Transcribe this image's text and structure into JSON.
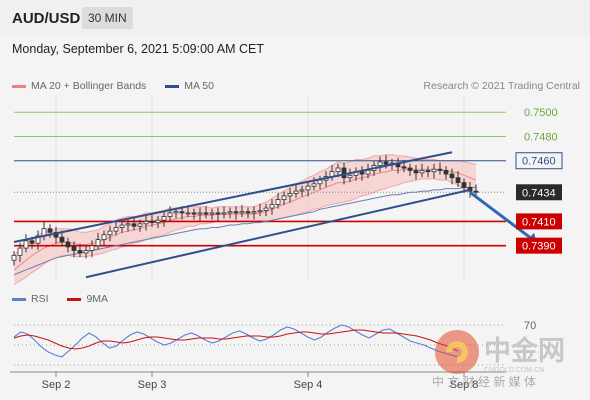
{
  "header": {
    "symbol": "AUD/USD",
    "timeframe": "30 MIN"
  },
  "datetime": "Monday, September 6, 2021 5:09:00 AM CET",
  "legend": {
    "bb_label": "MA 20 + Bollinger Bands",
    "ma50_label": "MA 50",
    "credit": "Research © 2021 Trading Central",
    "bb_color": "#f08080",
    "ma50_color": "#2e4f8c"
  },
  "rsi_legend": {
    "rsi_label": "RSI",
    "ma_label": "9MA",
    "rsi_color": "#5b7fd0",
    "ma_color": "#cc1111"
  },
  "watermark": {
    "brand": "中金网",
    "site": "CNGOLD.COM.CN",
    "tagline": "中 文 财 经 新 媒 体"
  },
  "chart_data": [
    {
      "type": "candlestick",
      "ylim": [
        0.7365,
        0.7515
      ],
      "x_ticks": [
        "Sep 2",
        "Sep 3",
        "Sep 4",
        "Sep 8"
      ],
      "levels": [
        {
          "value": 0.75,
          "label": "0.7500",
          "kind": "target",
          "color": "#8fc860"
        },
        {
          "value": 0.748,
          "label": "0.7480",
          "kind": "target",
          "color": "#8fc860"
        },
        {
          "value": 0.746,
          "label": "0.7460",
          "kind": "pivot",
          "color": "#2e4f8c"
        },
        {
          "value": 0.7434,
          "label": "0.7434",
          "kind": "last-price",
          "color": "#222222"
        },
        {
          "value": 0.741,
          "label": "0.7410",
          "kind": "support",
          "color": "#cc0000"
        },
        {
          "value": 0.739,
          "label": "0.7390",
          "kind": "support",
          "color": "#cc0000"
        }
      ],
      "close": [
        0.7382,
        0.7388,
        0.7394,
        0.7392,
        0.7398,
        0.7404,
        0.7401,
        0.7397,
        0.7393,
        0.7389,
        0.7386,
        0.7384,
        0.7386,
        0.739,
        0.7395,
        0.7399,
        0.7402,
        0.7405,
        0.7407,
        0.7408,
        0.7406,
        0.7408,
        0.741,
        0.7409,
        0.7411,
        0.7414,
        0.7417,
        0.7418,
        0.7417,
        0.7417,
        0.7416,
        0.7417,
        0.7416,
        0.7417,
        0.7416,
        0.7417,
        0.7418,
        0.7417,
        0.7418,
        0.7417,
        0.7418,
        0.7419,
        0.7421,
        0.7424,
        0.7428,
        0.7431,
        0.7433,
        0.7435,
        0.7436,
        0.7439,
        0.7441,
        0.7444,
        0.7447,
        0.7451,
        0.7454,
        0.7446,
        0.7448,
        0.7451,
        0.7449,
        0.7452,
        0.7456,
        0.7459,
        0.7457,
        0.7458,
        0.7455,
        0.7454,
        0.7452,
        0.745,
        0.7452,
        0.7451,
        0.7453,
        0.7452,
        0.7449,
        0.7446,
        0.7442,
        0.7438,
        0.7435,
        0.7434
      ],
      "bb_mid": [
        0.737,
        0.7374,
        0.7378,
        0.7382,
        0.7385,
        0.7388,
        0.739,
        0.7392,
        0.7393,
        0.7393,
        0.7392,
        0.7391,
        0.7391,
        0.7392,
        0.7393,
        0.7395,
        0.7397,
        0.7399,
        0.7401,
        0.7402,
        0.7403,
        0.7404,
        0.7406,
        0.7407,
        0.7408,
        0.7409,
        0.7411,
        0.7412,
        0.7413,
        0.7414,
        0.7414,
        0.7415,
        0.7415,
        0.7415,
        0.7416,
        0.7416,
        0.7416,
        0.7416,
        0.7416,
        0.7416,
        0.7416,
        0.7417,
        0.7418,
        0.742,
        0.7422,
        0.7424,
        0.7426,
        0.7428,
        0.743,
        0.7432,
        0.7434,
        0.7436,
        0.7438,
        0.744,
        0.7442,
        0.7442,
        0.7443,
        0.7445,
        0.7446,
        0.7447,
        0.7449,
        0.745,
        0.7451,
        0.7452,
        0.7452,
        0.7453,
        0.7453,
        0.7453,
        0.7453,
        0.7453,
        0.7453,
        0.7452,
        0.7452,
        0.7451,
        0.745,
        0.7448,
        0.7446,
        0.7444
      ],
      "bb_width": [
        0.0012,
        0.0013,
        0.0014,
        0.0014,
        0.0014,
        0.0013,
        0.0012,
        0.0012,
        0.0011,
        0.0011,
        0.0011,
        0.001,
        0.001,
        0.001,
        0.001,
        0.0011,
        0.0011,
        0.0012,
        0.0012,
        0.0012,
        0.0011,
        0.0011,
        0.0011,
        0.001,
        0.001,
        0.001,
        0.001,
        0.0009,
        0.0009,
        0.0008,
        0.0008,
        0.0007,
        0.0007,
        0.0006,
        0.0006,
        0.0006,
        0.0006,
        0.0006,
        0.0006,
        0.0006,
        0.0006,
        0.0007,
        0.0008,
        0.0009,
        0.001,
        0.0011,
        0.0012,
        0.0013,
        0.0013,
        0.0014,
        0.0014,
        0.0015,
        0.0015,
        0.0016,
        0.0017,
        0.0016,
        0.0016,
        0.0016,
        0.0015,
        0.0015,
        0.0015,
        0.0014,
        0.0014,
        0.0013,
        0.0012,
        0.0011,
        0.001,
        0.0009,
        0.0008,
        0.0008,
        0.0008,
        0.0008,
        0.0008,
        0.0009,
        0.001,
        0.0011,
        0.0012,
        0.0013
      ],
      "ma50": [
        0.7366,
        0.7368,
        0.737,
        0.7372,
        0.7374,
        0.7376,
        0.7378,
        0.738,
        0.7381,
        0.7382,
        0.7383,
        0.7384,
        0.7385,
        0.7386,
        0.7387,
        0.7388,
        0.7389,
        0.739,
        0.7391,
        0.7392,
        0.7393,
        0.7394,
        0.7395,
        0.7396,
        0.7397,
        0.7398,
        0.7399,
        0.74,
        0.7401,
        0.7402,
        0.7403,
        0.7404,
        0.7404,
        0.7405,
        0.7405,
        0.7406,
        0.7407,
        0.7407,
        0.7408,
        0.7408,
        0.7409,
        0.7409,
        0.741,
        0.7411,
        0.7412,
        0.7413,
        0.7414,
        0.7415,
        0.7416,
        0.7417,
        0.7418,
        0.742,
        0.7421,
        0.7422,
        0.7423,
        0.7424,
        0.7425,
        0.7426,
        0.7427,
        0.7428,
        0.7429,
        0.743,
        0.7431,
        0.7432,
        0.7432,
        0.7433,
        0.7434,
        0.7434,
        0.7435,
        0.7435,
        0.7436,
        0.7436,
        0.7437,
        0.7437,
        0.7437,
        0.7438,
        0.7438,
        0.7438
      ],
      "channel": {
        "upper": {
          "from": [
            0,
            0.7393
          ],
          "to": [
            73,
            0.7467
          ]
        },
        "lower": {
          "from": [
            12,
            0.7364
          ],
          "to": [
            76,
            0.7436
          ]
        }
      },
      "forecast_arrow": {
        "from": [
          76,
          0.7434
        ],
        "to": [
          87,
          0.739
        ]
      }
    },
    {
      "type": "line",
      "ylim": [
        25,
        85
      ],
      "ref_lines": [
        70,
        50,
        30
      ],
      "ref_labels": [
        "70"
      ],
      "series": [
        {
          "name": "RSI",
          "values": [
            58,
            63,
            61,
            55,
            48,
            43,
            40,
            38,
            44,
            50,
            57,
            62,
            58,
            52,
            47,
            49,
            55,
            60,
            63,
            61,
            57,
            53,
            50,
            52,
            56,
            60,
            62,
            59,
            55,
            52,
            54,
            58,
            62,
            64,
            61,
            57,
            54,
            56,
            60,
            65,
            68,
            66,
            62,
            58,
            55,
            58,
            63,
            67,
            70,
            68,
            64,
            60,
            57,
            61,
            65,
            66,
            62,
            58,
            54,
            52,
            50,
            47,
            44,
            42,
            40,
            38
          ]
        },
        {
          "name": "9MA",
          "values": [
            57,
            59,
            60,
            59,
            57,
            55,
            52,
            49,
            47,
            46,
            47,
            49,
            52,
            54,
            54,
            53,
            52,
            53,
            55,
            57,
            58,
            58,
            57,
            56,
            55,
            55,
            56,
            57,
            57,
            57,
            56,
            56,
            57,
            58,
            59,
            59,
            59,
            58,
            58,
            59,
            61,
            62,
            63,
            63,
            62,
            61,
            61,
            62,
            63,
            64,
            65,
            65,
            64,
            63,
            62,
            62,
            62,
            61,
            60,
            59,
            57,
            55,
            52,
            50,
            47,
            44
          ]
        }
      ]
    }
  ]
}
